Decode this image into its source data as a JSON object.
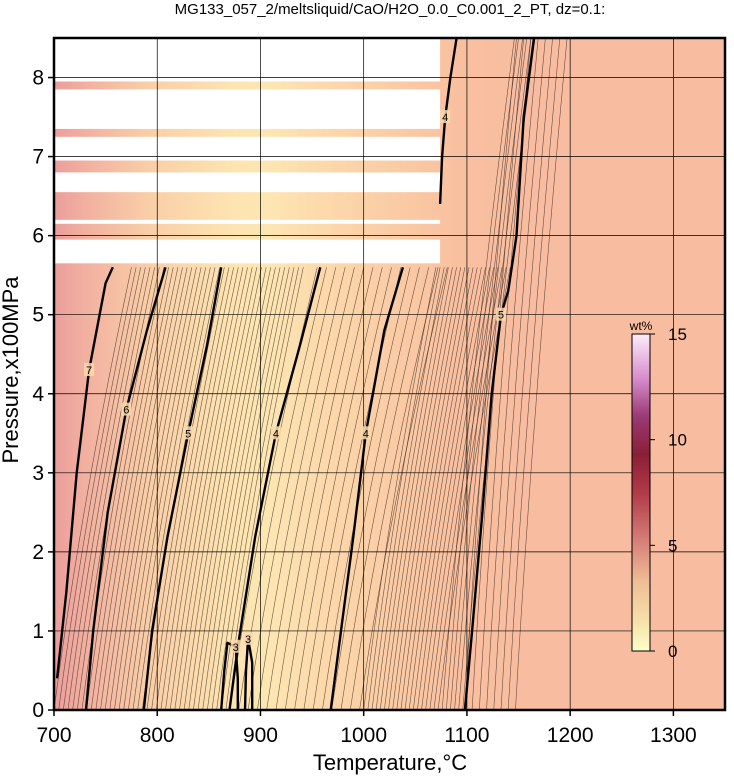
{
  "chart_data": {
    "type": "heatmap",
    "title": "MG133_057_2/meltsliquid/CaO/H2O_0.0_C0.001_2_PT, dz=0.1:",
    "xlabel": "Temperature,°C",
    "ylabel": "Pressure,x100MPa",
    "xlim": [
      700,
      1350
    ],
    "ylim": [
      0,
      8.5
    ],
    "x_ticks": [
      "700",
      "800",
      "900",
      "1000",
      "1100",
      "1200",
      "1300"
    ],
    "y_ticks": [
      "0",
      "1",
      "2",
      "3",
      "4",
      "5",
      "6",
      "7",
      "8"
    ],
    "grid": true,
    "colorbar": {
      "unit": "wt%",
      "range": [
        0,
        15
      ],
      "ticks": [
        "0",
        "5",
        "10",
        "15"
      ],
      "placement": "right-inside"
    },
    "contour_lines": [
      {
        "level": 7,
        "label": "7",
        "points": [
          [
            703,
            0.4
          ],
          [
            712,
            1.5
          ],
          [
            722,
            3.0
          ],
          [
            734,
            4.3
          ],
          [
            750,
            5.4
          ],
          [
            757,
            5.6
          ]
        ]
      },
      {
        "level": 6,
        "label": "6",
        "points": [
          [
            731,
            0
          ],
          [
            738,
            1.0
          ],
          [
            752,
            2.5
          ],
          [
            770,
            3.8
          ],
          [
            790,
            4.8
          ],
          [
            808,
            5.6
          ]
        ]
      },
      {
        "level": 5,
        "label": "5",
        "points": [
          [
            787,
            0
          ],
          [
            795,
            1.0
          ],
          [
            810,
            2.2
          ],
          [
            830,
            3.5
          ],
          [
            848,
            4.6
          ],
          [
            862,
            5.6
          ]
        ]
      },
      {
        "level": 4,
        "label": "4",
        "points": [
          [
            870,
            0
          ],
          [
            878,
            0.8
          ],
          [
            895,
            2.2
          ],
          [
            915,
            3.5
          ],
          [
            938,
            4.6
          ],
          [
            958,
            5.6
          ]
        ]
      },
      {
        "level": 4,
        "label": "4",
        "points": [
          [
            968,
            0
          ],
          [
            978,
            1.0
          ],
          [
            990,
            2.2
          ],
          [
            1002,
            3.5
          ],
          [
            1020,
            4.8
          ],
          [
            1038,
            5.6
          ]
        ]
      },
      {
        "level": 3,
        "label": "3",
        "points": [
          [
            862,
            0
          ],
          [
            865,
            0.5
          ],
          [
            868,
            0.85
          ],
          [
            876,
            0.8
          ],
          [
            878,
            0.4
          ],
          [
            878,
            0
          ]
        ]
      },
      {
        "level": 3,
        "label": "3",
        "points": [
          [
            885,
            0
          ],
          [
            886,
            0.5
          ],
          [
            888,
            0.9
          ],
          [
            892,
            0.6
          ],
          [
            892,
            0
          ]
        ]
      },
      {
        "level": 5,
        "label": "5",
        "points": [
          [
            1098,
            0
          ],
          [
            1105,
            1.0
          ],
          [
            1115,
            2.5
          ],
          [
            1124,
            4.0
          ],
          [
            1133,
            5.0
          ],
          [
            1140,
            5.3
          ],
          [
            1148,
            6.0
          ],
          [
            1155,
            7.5
          ],
          [
            1165,
            8.5
          ]
        ]
      },
      {
        "level": 4,
        "label": "4",
        "points": [
          [
            1074,
            6.4
          ],
          [
            1076,
            7.0
          ],
          [
            1079,
            7.5
          ],
          [
            1084,
            8.0
          ],
          [
            1090,
            8.5
          ]
        ]
      }
    ],
    "blank_regions": [
      {
        "t_range": [
          700,
          1074
        ],
        "p_range": [
          7.95,
          8.5
        ]
      },
      {
        "t_range": [
          700,
          1074
        ],
        "p_range": [
          7.35,
          7.85
        ]
      },
      {
        "t_range": [
          700,
          1074
        ],
        "p_range": [
          6.95,
          7.25
        ]
      },
      {
        "t_range": [
          700,
          1074
        ],
        "p_range": [
          6.55,
          6.8
        ]
      },
      {
        "t_range": [
          700,
          1074
        ],
        "p_range": [
          6.15,
          6.2
        ]
      },
      {
        "t_range": [
          700,
          1074
        ],
        "p_range": [
          5.65,
          5.95
        ]
      }
    ]
  }
}
